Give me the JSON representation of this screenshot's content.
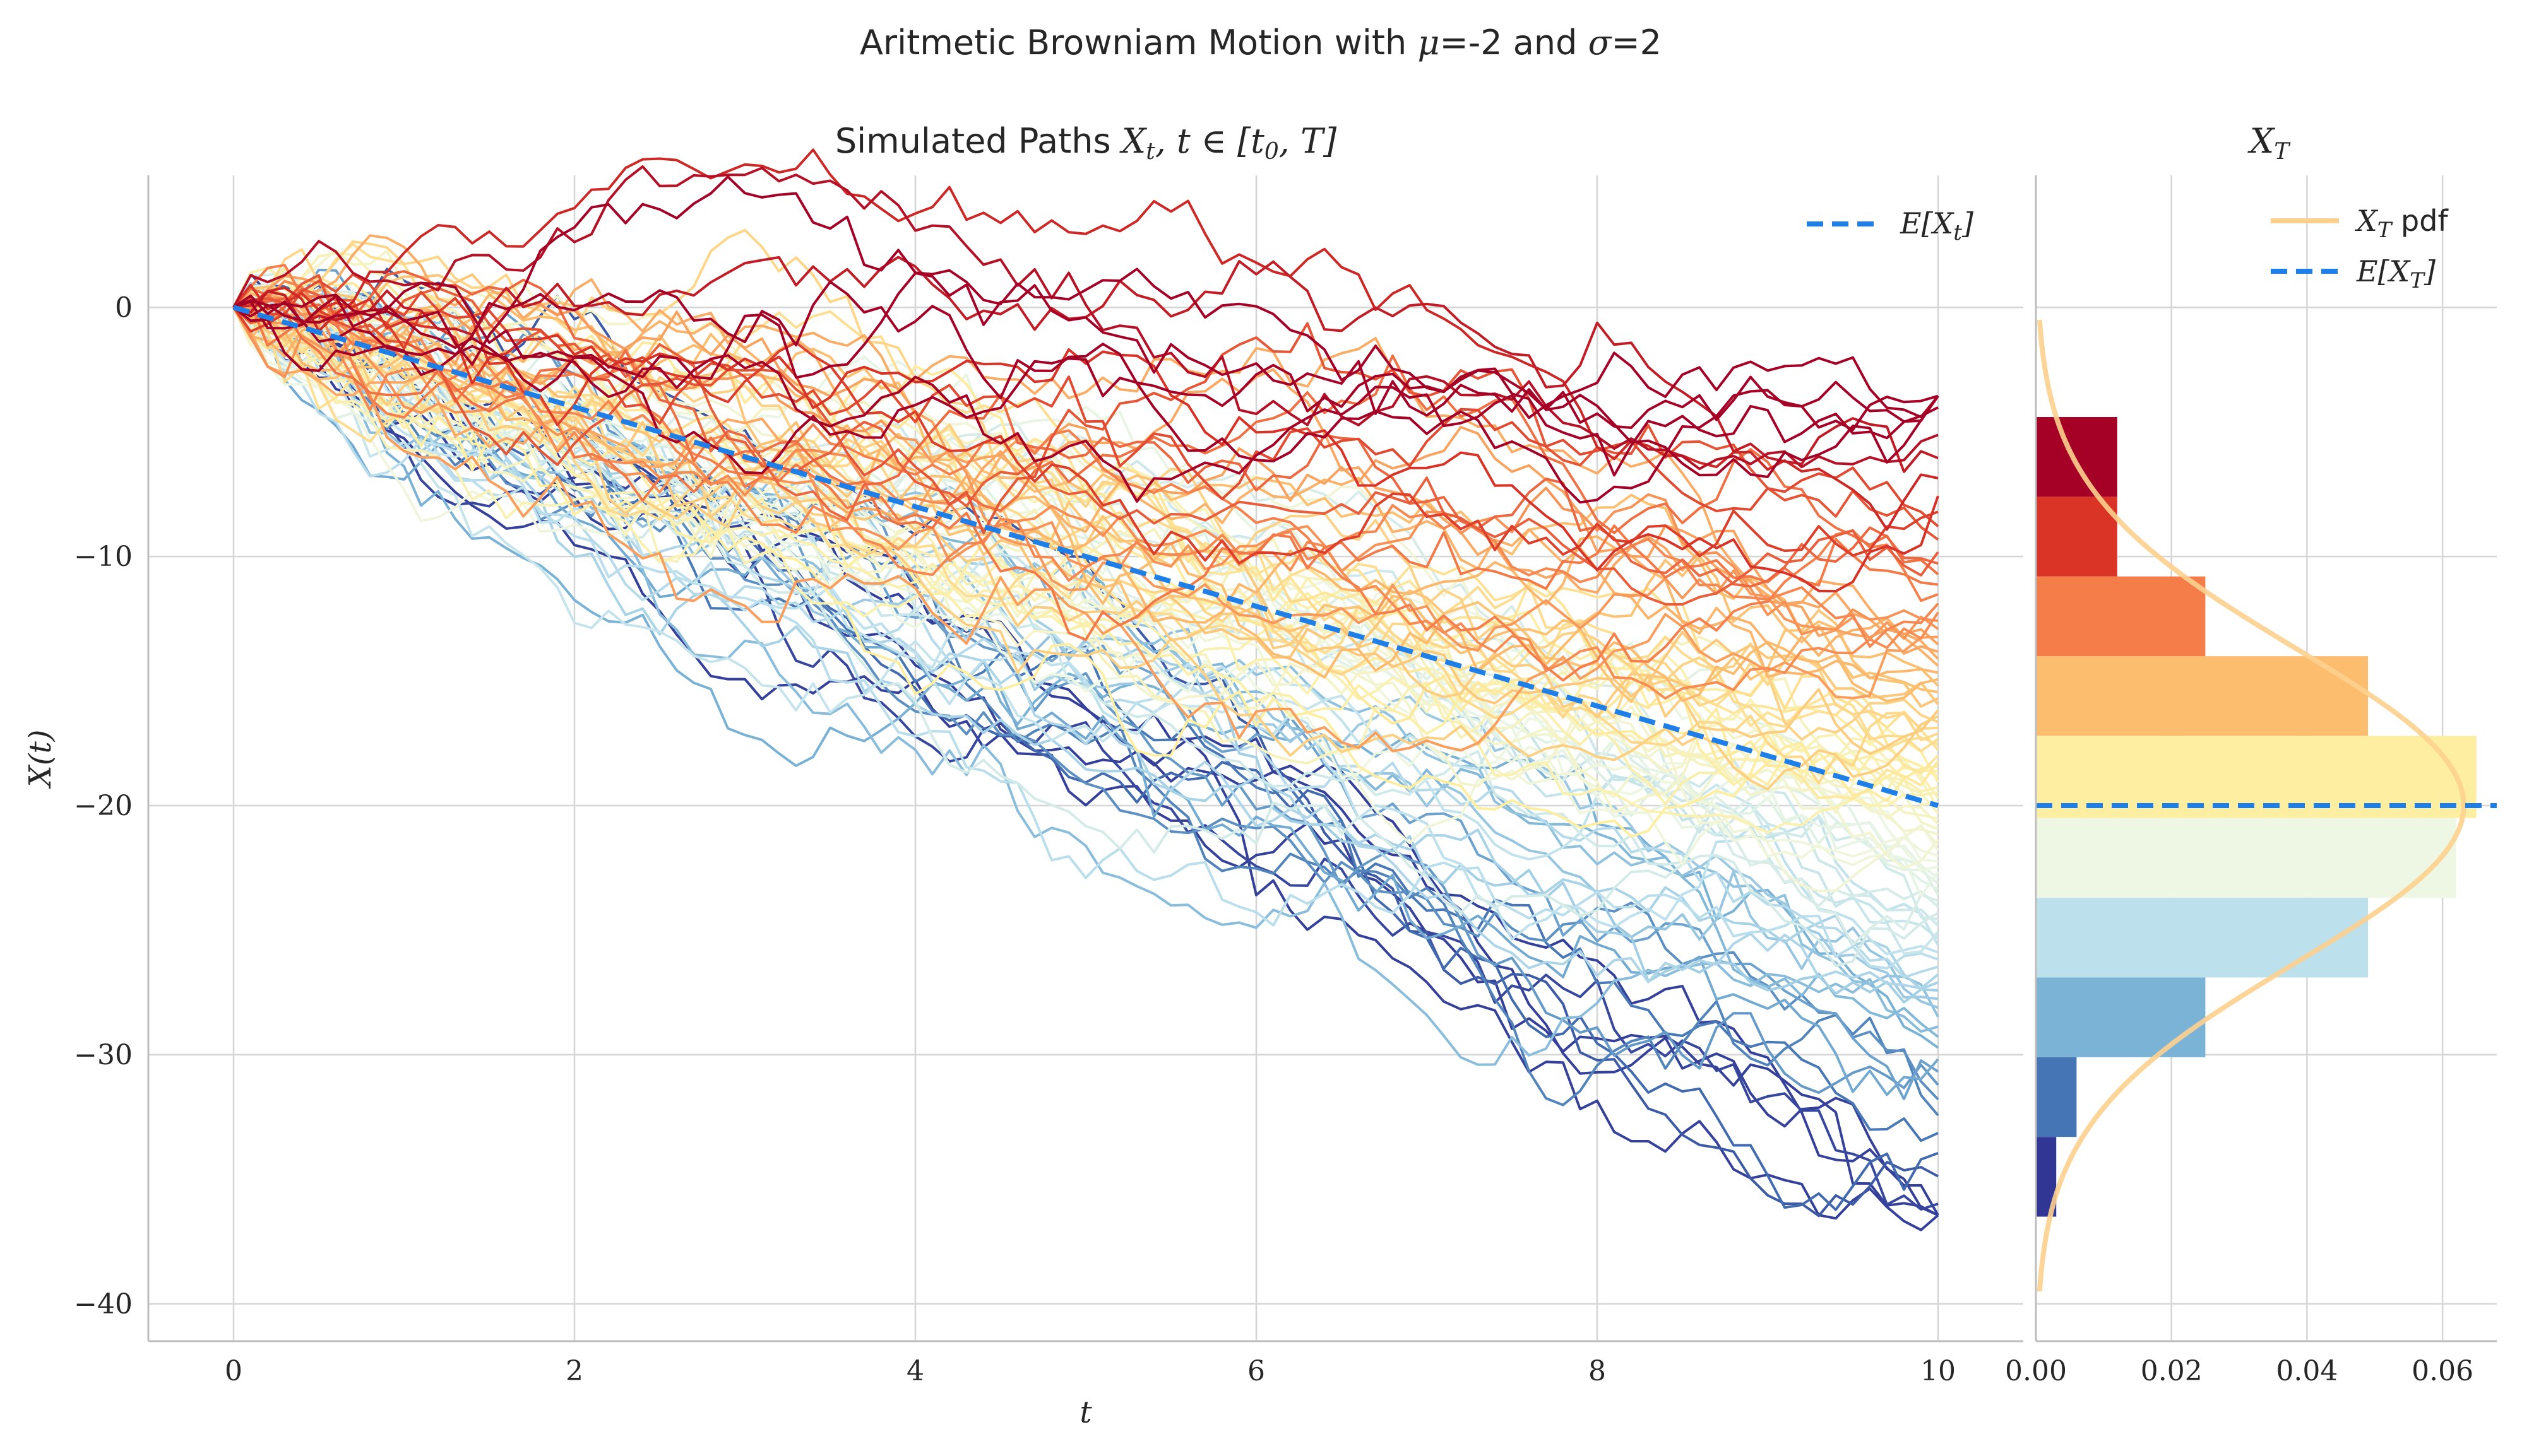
{
  "figure": {
    "title": "Aritmetic Browniam Motion with μ=-2 and σ=2",
    "title_prefix": "Aritmetic Browniam Motion with ",
    "title_mu": "μ",
    "title_mid": "=-2 and ",
    "title_sigma": "σ",
    "title_end": "=2"
  },
  "chart_data": [
    {
      "type": "line",
      "title": "Simulated Paths X_t, t ∈ [t_0, T]",
      "title_prefix": "Simulated Paths ",
      "title_math": "X",
      "title_sub_t": "t",
      "title_rest": ", t ∈ [t",
      "title_sub_0": "0",
      "title_end": ", T]",
      "xlabel": "t",
      "ylabel": "X(t)",
      "xlim": [
        -0.5,
        10.5
      ],
      "ylim": [
        -41.5,
        5.3
      ],
      "xticks": [
        0,
        2,
        4,
        6,
        8,
        10
      ],
      "xtick_labels": [
        "0",
        "2",
        "4",
        "6",
        "8",
        "10"
      ],
      "yticks": [
        0,
        -10,
        -20,
        -30,
        -40
      ],
      "ytick_labels": [
        "0",
        "−10",
        "−20",
        "−30",
        "−40"
      ],
      "grid": true,
      "legend_position": "top-right",
      "colormap": "RdYlBu",
      "paths": {
        "count": 100,
        "t_start": 0,
        "t_end": 10,
        "steps": 100,
        "x0": 0,
        "mu": -2,
        "sigma": 2,
        "colored_by": "final value",
        "final_value_range": [
          -37,
          -4
        ]
      },
      "series": [
        {
          "name": "E[X_t]",
          "label_math": "E[X",
          "label_sub": "t",
          "label_end": "]",
          "x": [
            0,
            10
          ],
          "values": [
            0,
            -20
          ],
          "color": "#1f7fe8",
          "style": "dashed"
        }
      ]
    },
    {
      "type": "bar",
      "orientation": "horizontal",
      "title": "X_T",
      "title_math": "X",
      "title_sub": "T",
      "xlim": [
        0,
        0.068
      ],
      "xticks": [
        0,
        0.02,
        0.04,
        0.06
      ],
      "xtick_labels": [
        "0.00",
        "0.02",
        "0.04",
        "0.06"
      ],
      "grid": true,
      "legend_position": "top-right",
      "bins": {
        "edges": [
          -36.5,
          -33.3,
          -30.1,
          -26.9,
          -23.7,
          -20.5,
          -17.2,
          -14.0,
          -10.8,
          -7.6,
          -4.4
        ],
        "density": [
          0.003,
          0.006,
          0.025,
          0.049,
          0.062,
          0.065,
          0.049,
          0.025,
          0.012,
          0.012
        ],
        "colors": [
          "#313695",
          "#4575b4",
          "#7bb3d6",
          "#bde0ed",
          "#eef7e3",
          "#fdeea2",
          "#fcbd6f",
          "#f57d4a",
          "#d93426",
          "#a50026"
        ]
      },
      "series": [
        {
          "name": "X_T pdf",
          "label_math": "X",
          "label_sub": "T",
          "label_end": " pdf",
          "type": "normal-pdf",
          "mean": -20,
          "sd": 6.32,
          "y_range": [
            -39.5,
            -0.5
          ],
          "color": "#fdd08e"
        },
        {
          "name": "E[X_T]",
          "label_math": "E[X",
          "label_sub": "T",
          "label_end": "]",
          "value": -20,
          "color": "#1f7fe8",
          "style": "dashed"
        }
      ]
    }
  ]
}
